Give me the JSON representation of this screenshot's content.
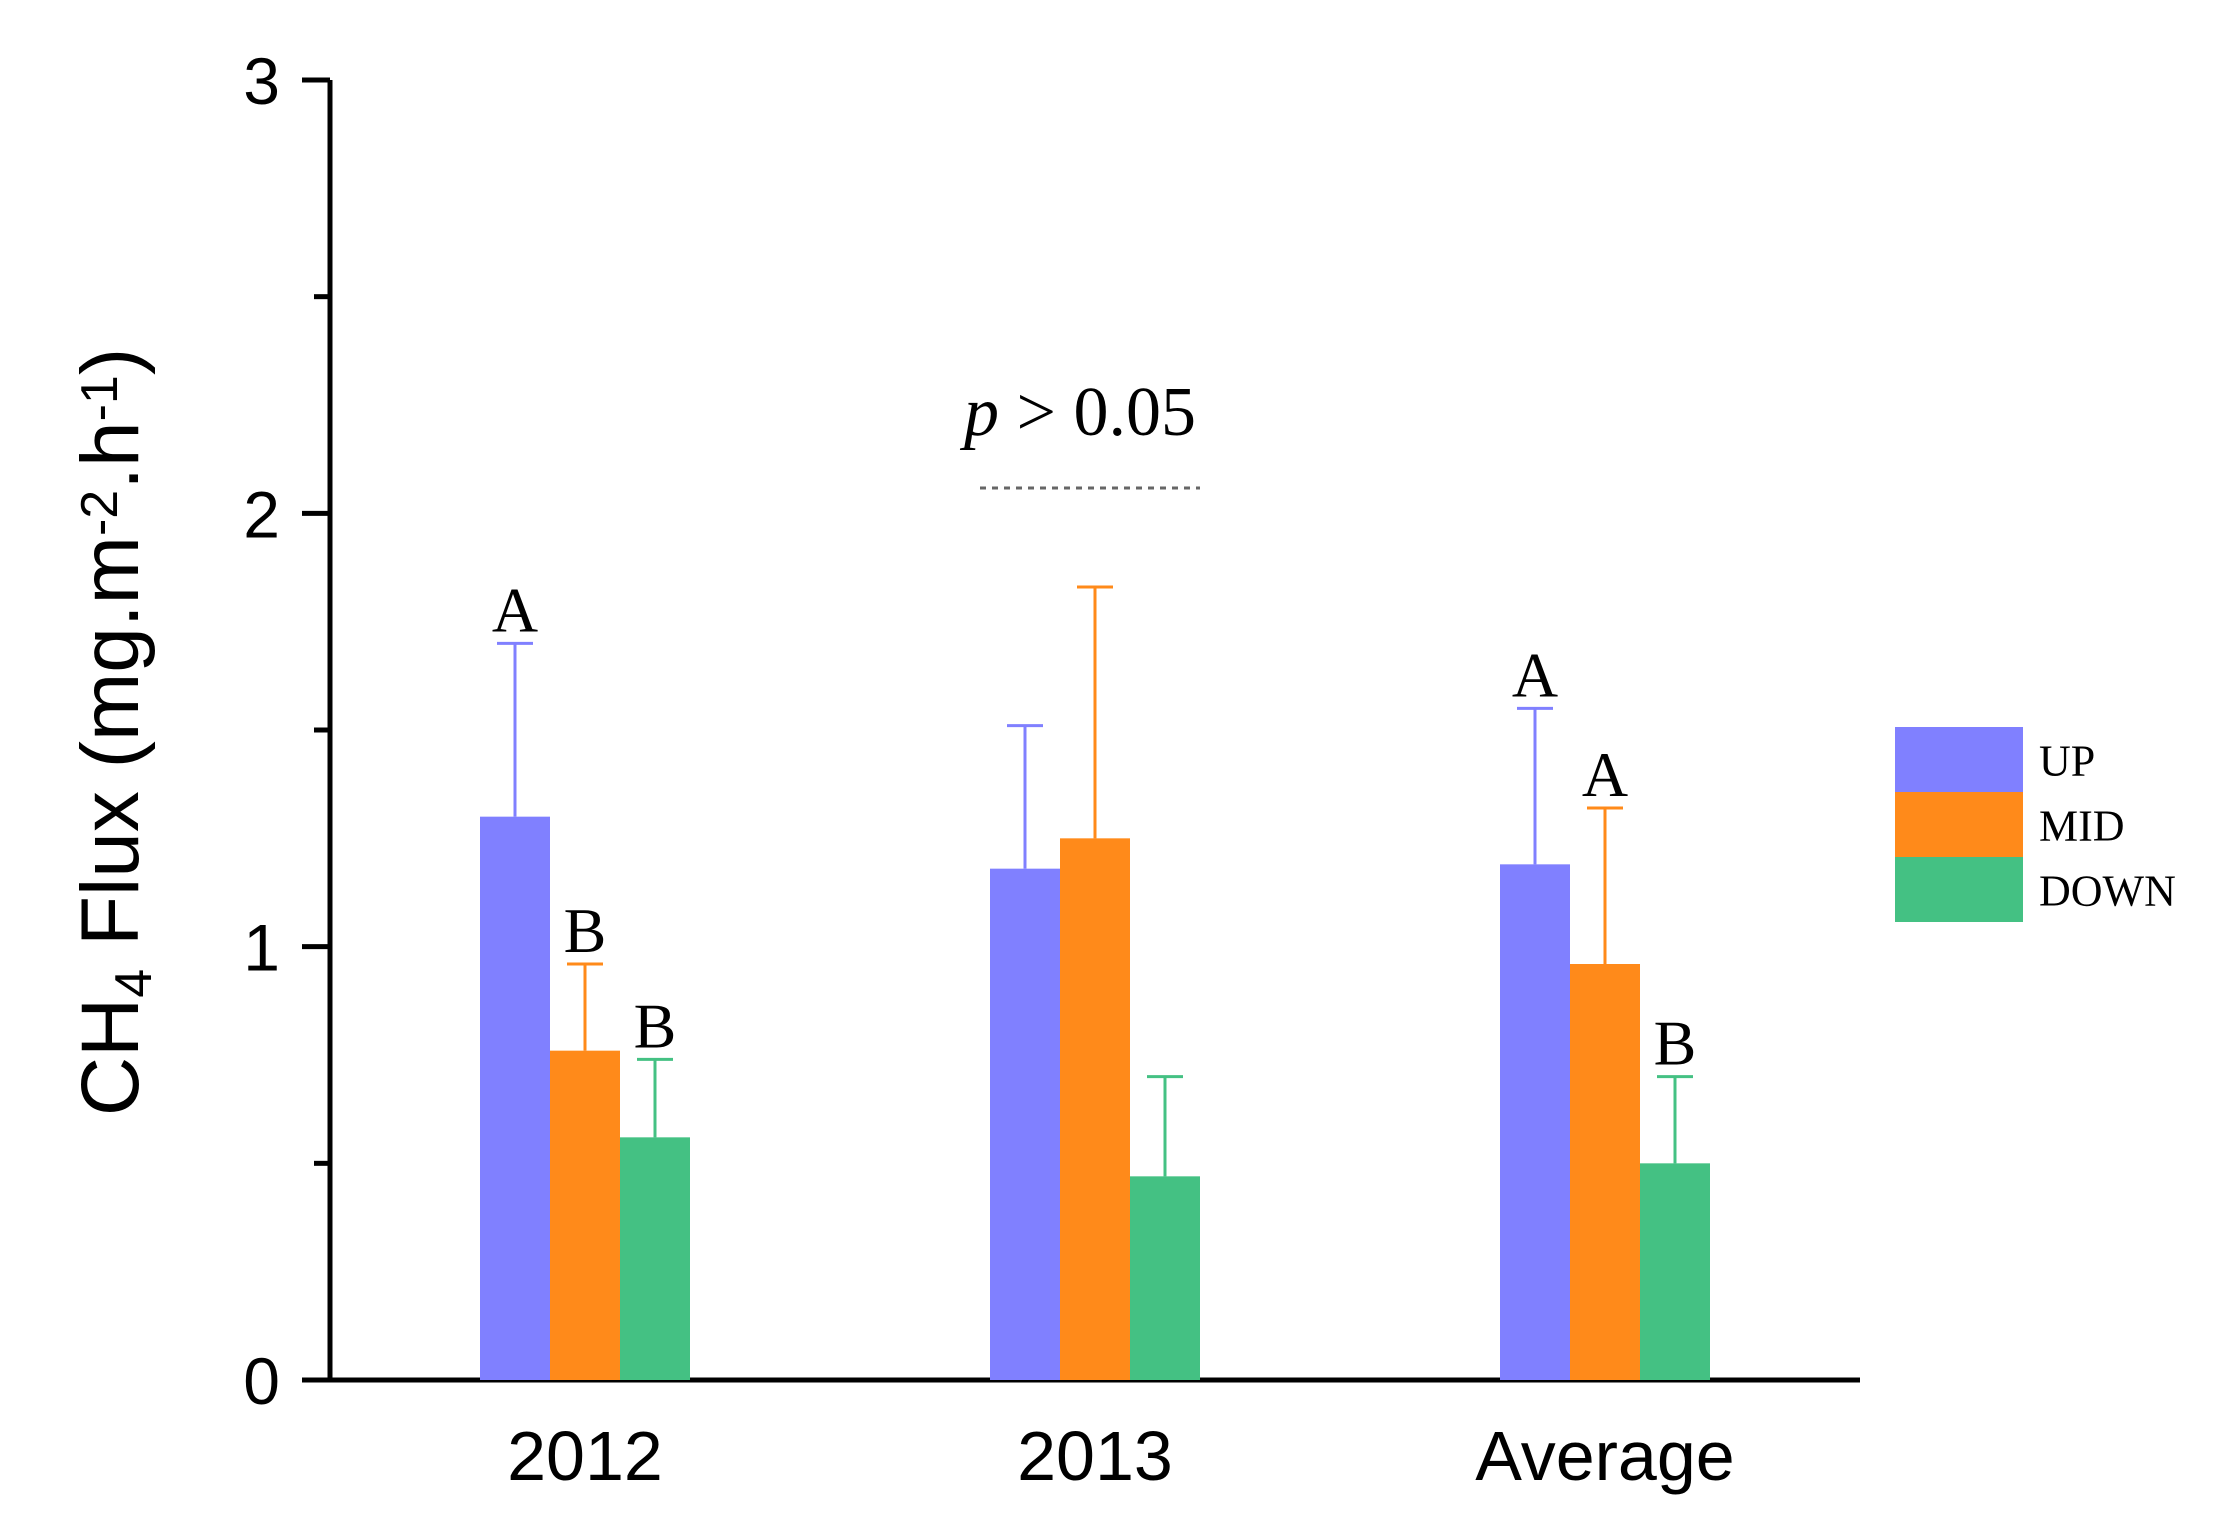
{
  "chart_data": {
    "type": "bar",
    "title": "",
    "xlabel": "",
    "ylabel": {
      "prefix": "CH",
      "sub": "4",
      "mid": " Flux (mg.m",
      "sup1": "-2",
      "mid2": ".h",
      "sup2": "-1",
      "suffix": ")"
    },
    "ylim": [
      0,
      3
    ],
    "major_ticks": [
      0,
      1,
      2,
      3
    ],
    "major_tick_labels": [
      "0",
      "1",
      "2",
      "3"
    ],
    "minor_ticks": [
      0.5,
      1.5,
      2.5
    ],
    "categories": [
      "2012",
      "2013",
      "Average"
    ],
    "series": [
      {
        "name": "UP",
        "color": "#8080ff",
        "values": [
          1.3,
          1.18,
          1.19
        ],
        "errors": [
          0.4,
          0.33,
          0.36
        ],
        "letters": [
          "A",
          "",
          "A"
        ]
      },
      {
        "name": "MID",
        "color": "#ff8a1a",
        "values": [
          0.76,
          1.25,
          0.96
        ],
        "errors": [
          0.2,
          0.58,
          0.36
        ],
        "letters": [
          "B",
          "",
          "A"
        ]
      },
      {
        "name": "DOWN",
        "color": "#44c183",
        "values": [
          0.56,
          0.47,
          0.5
        ],
        "errors": [
          0.18,
          0.23,
          0.2
        ],
        "letters": [
          "B",
          "",
          "B"
        ]
      }
    ],
    "annotation": {
      "italic": "p",
      "text": " > 0.05",
      "category_index": 1
    },
    "legend_position": "right"
  }
}
